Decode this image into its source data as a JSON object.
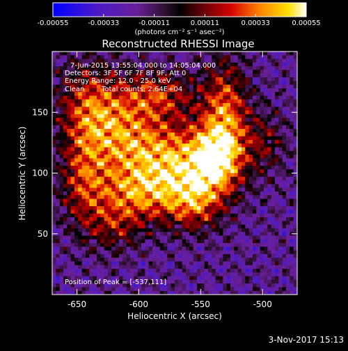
{
  "chart_data": {
    "type": "heatmap",
    "title": "Reconstructed RHESSI Image",
    "xlabel": "Heliocentric X (arcsec)",
    "ylabel": "Heliocentric Y (arcsec)",
    "xlim": [
      -670,
      -472
    ],
    "ylim": [
      0,
      200
    ],
    "x_ticks": [
      -650,
      -600,
      -550,
      -500
    ],
    "y_ticks": [
      50,
      100,
      150
    ],
    "colorbar": {
      "min": -0.00055,
      "max": 0.00055,
      "tick_values": [
        -0.00055,
        -0.00033,
        -0.00011,
        0.00011,
        0.00033,
        0.00055
      ],
      "tick_labels": [
        "-0.00055",
        "-0.00033",
        "-0.00011",
        "0.00011",
        "0.00033",
        "0.00055"
      ],
      "unit_label": "(photons cm⁻² s⁻¹ asec⁻²)"
    },
    "annotations": {
      "time": "7-Jun-2015 13:55:04.000 to 14:05:04.000",
      "detectors": "Detectors: 3F 5F 6F 7F 8F 9F, Att 0",
      "energy": "Energy Range: 12.0 - 25.0 keV",
      "clean": "Clean",
      "counts": "Total counts: 2.64E+04",
      "peak": "Position of Peak = [-537,111]"
    },
    "peak": [
      -537,
      111
    ],
    "source_blobs": [
      {
        "x": -570,
        "y": 110,
        "amp": 0.0005,
        "sx": 25,
        "sy": 22
      },
      {
        "x": -612,
        "y": 128,
        "amp": 0.00042,
        "sx": 22,
        "sy": 25
      },
      {
        "x": -600,
        "y": 82,
        "amp": 0.0004,
        "sx": 26,
        "sy": 16
      },
      {
        "x": -537,
        "y": 111,
        "amp": 0.0005,
        "sx": 15,
        "sy": 20
      },
      {
        "x": -530,
        "y": 150,
        "amp": 0.00045,
        "sx": 13,
        "sy": 30
      },
      {
        "x": -640,
        "y": 155,
        "amp": 0.00038,
        "sx": 18,
        "sy": 25
      },
      {
        "x": -585,
        "y": 165,
        "amp": 0.00035,
        "sx": 22,
        "sy": 14
      },
      {
        "x": -555,
        "y": 75,
        "amp": 0.00036,
        "sx": 16,
        "sy": 16
      },
      {
        "x": -645,
        "y": 95,
        "amp": 0.00032,
        "sx": 13,
        "sy": 28
      },
      {
        "x": -498,
        "y": 125,
        "amp": 0.00022,
        "sx": 12,
        "sy": 18
      },
      {
        "x": -620,
        "y": 55,
        "amp": 0.00024,
        "sx": 16,
        "sy": 14
      }
    ]
  },
  "footer": {
    "date": "3-Nov-2017 15:13"
  }
}
